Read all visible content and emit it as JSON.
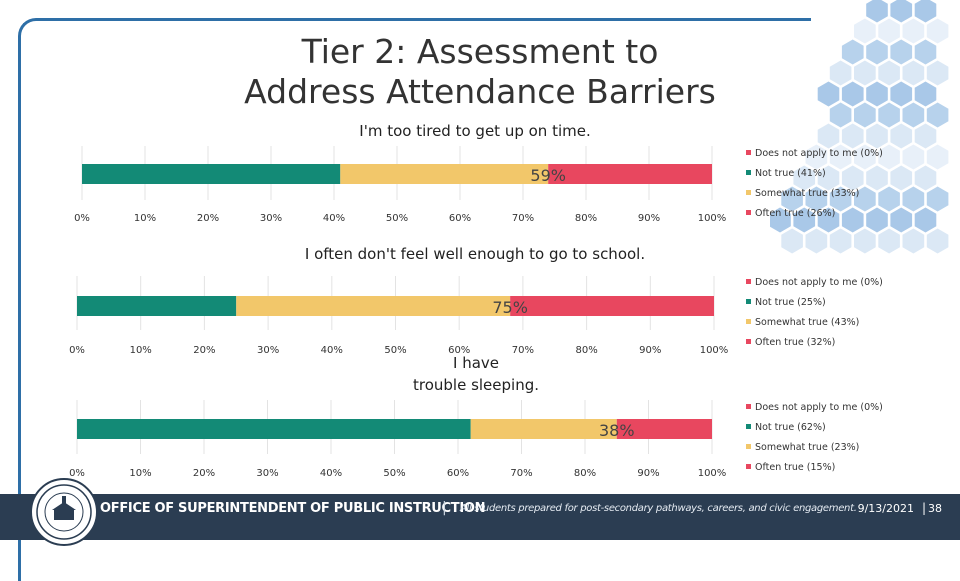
{
  "slide": {
    "title_line1": "Tier 2: Assessment to",
    "title_line2": "Address Attendance Barriers",
    "footer_office": "OFFICE OF SUPERINTENDENT OF PUBLIC INSTRUCTION",
    "footer_separator": "|",
    "footer_tagline": "All students prepared for post-secondary pathways, careers, and civic engagement.",
    "date": "9/13/2021",
    "page_separator": "|",
    "page_number": "38",
    "seal_icon": "ospi-seal-icon"
  },
  "colors": {
    "frame": "#2e6fa7",
    "footer": "#2b3d52",
    "does_not_apply": "#e8475f",
    "not_true": "#138a76",
    "somewhat_true": "#f2c76a",
    "often_true": "#e8475f"
  },
  "chart_data": [
    {
      "type": "bar",
      "orientation": "horizontal-stacked",
      "title": "I'm too tired to get up on time.",
      "data_label": "59%",
      "xlim": [
        0,
        100
      ],
      "x_ticks": [
        "0%",
        "10%",
        "20%",
        "30%",
        "40%",
        "50%",
        "60%",
        "70%",
        "80%",
        "90%",
        "100%"
      ],
      "series": [
        {
          "name": "Does not apply to me (0%)",
          "value": 0
        },
        {
          "name": "Not true (41%)",
          "value": 41
        },
        {
          "name": "Somewhat true (33%)",
          "value": 33
        },
        {
          "name": "Often true (26%)",
          "value": 26
        }
      ],
      "legend": "right"
    },
    {
      "type": "bar",
      "orientation": "horizontal-stacked",
      "title": "I often don't feel well enough to go to school.",
      "data_label": "75%",
      "xlim": [
        0,
        100
      ],
      "x_ticks": [
        "0%",
        "10%",
        "20%",
        "30%",
        "40%",
        "50%",
        "60%",
        "70%",
        "80%",
        "90%",
        "100%"
      ],
      "series": [
        {
          "name": "Does not apply to me (0%)",
          "value": 0
        },
        {
          "name": "Not true (25%)",
          "value": 25
        },
        {
          "name": "Somewhat true (43%)",
          "value": 43
        },
        {
          "name": "Often true (32%)",
          "value": 32
        }
      ],
      "legend": "right"
    },
    {
      "type": "bar",
      "orientation": "horizontal-stacked",
      "title": "I have trouble sleeping.",
      "data_label": "38%",
      "xlim": [
        0,
        100
      ],
      "x_ticks": [
        "0%",
        "10%",
        "20%",
        "30%",
        "40%",
        "50%",
        "60%",
        "70%",
        "80%",
        "90%",
        "100%"
      ],
      "series": [
        {
          "name": "Does not apply to me (0%)",
          "value": 0
        },
        {
          "name": "Not true (62%)",
          "value": 62
        },
        {
          "name": "Somewhat true (23%)",
          "value": 23
        },
        {
          "name": "Often true (15%)",
          "value": 15
        }
      ],
      "legend": "right"
    }
  ]
}
